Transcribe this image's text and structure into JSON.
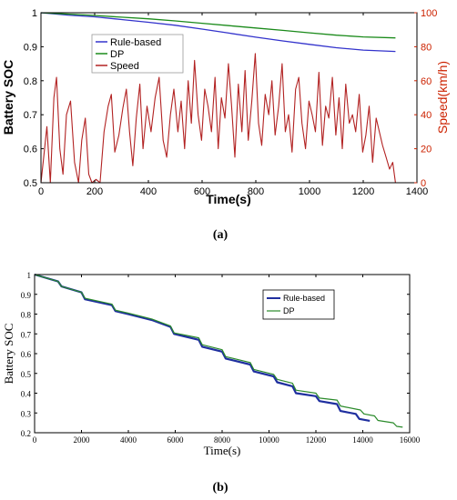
{
  "panel_a": {
    "caption": "(a)",
    "chart_data": {
      "type": "line",
      "xlabel": "Time(s)",
      "ylabel": "Battery SOC",
      "y2label": "Speed(km/h)",
      "xlim": [
        0,
        1400
      ],
      "ylim": [
        0.5,
        1.0
      ],
      "y2lim": [
        0,
        100
      ],
      "x_ticks": [
        "0",
        "200",
        "400",
        "600",
        "800",
        "1000",
        "1200",
        "1400"
      ],
      "y_ticks": [
        "0.5",
        "0.6",
        "0.7",
        "0.8",
        "0.9",
        "1"
      ],
      "y2_ticks": [
        "0",
        "20",
        "40",
        "60",
        "80",
        "100"
      ],
      "legend": {
        "placement": "top-left",
        "entries": [
          "Rule-based",
          "DP",
          "Speed"
        ]
      },
      "series": [
        {
          "name": "Rule-based",
          "color": "#3333cc",
          "axis": "left",
          "x": [
            0,
            100,
            200,
            300,
            400,
            500,
            600,
            700,
            800,
            900,
            1000,
            1100,
            1200,
            1320
          ],
          "values": [
            1.0,
            0.993,
            0.988,
            0.98,
            0.972,
            0.963,
            0.952,
            0.94,
            0.928,
            0.917,
            0.907,
            0.897,
            0.89,
            0.886
          ]
        },
        {
          "name": "DP",
          "color": "#1a8a1a",
          "axis": "left",
          "x": [
            0,
            100,
            200,
            300,
            400,
            500,
            600,
            700,
            800,
            900,
            1000,
            1100,
            1200,
            1320
          ],
          "values": [
            1.0,
            0.996,
            0.992,
            0.987,
            0.982,
            0.976,
            0.969,
            0.962,
            0.955,
            0.948,
            0.941,
            0.934,
            0.929,
            0.926
          ]
        },
        {
          "name": "Speed",
          "color": "#b22222",
          "axis": "right",
          "x": [
            0,
            10,
            22,
            35,
            48,
            58,
            70,
            82,
            95,
            110,
            125,
            140,
            152,
            165,
            178,
            190,
            205,
            220,
            235,
            250,
            262,
            275,
            290,
            305,
            318,
            330,
            342,
            355,
            368,
            380,
            395,
            410,
            425,
            440,
            455,
            468,
            482,
            495,
            510,
            522,
            535,
            548,
            560,
            572,
            585,
            598,
            610,
            622,
            635,
            648,
            660,
            672,
            685,
            698,
            710,
            722,
            735,
            748,
            760,
            772,
            785,
            798,
            810,
            822,
            835,
            848,
            860,
            872,
            885,
            898,
            910,
            922,
            935,
            948,
            960,
            972,
            985,
            998,
            1010,
            1022,
            1035,
            1048,
            1060,
            1072,
            1085,
            1098,
            1110,
            1122,
            1135,
            1148,
            1160,
            1172,
            1185,
            1198,
            1210,
            1222,
            1235,
            1248,
            1260,
            1272,
            1285,
            1298,
            1310,
            1320
          ],
          "values": [
            0,
            15,
            33,
            0,
            50,
            62,
            20,
            5,
            40,
            48,
            12,
            0,
            25,
            38,
            5,
            0,
            2,
            0,
            30,
            45,
            52,
            18,
            28,
            44,
            55,
            30,
            10,
            38,
            58,
            20,
            45,
            30,
            50,
            62,
            25,
            15,
            40,
            55,
            30,
            48,
            20,
            60,
            35,
            72,
            40,
            25,
            55,
            45,
            30,
            62,
            20,
            50,
            38,
            70,
            45,
            15,
            58,
            30,
            66,
            25,
            48,
            76,
            35,
            22,
            52,
            40,
            60,
            28,
            45,
            70,
            30,
            40,
            18,
            55,
            62,
            35,
            20,
            48,
            40,
            30,
            65,
            22,
            45,
            38,
            62,
            28,
            50,
            20,
            58,
            35,
            40,
            30,
            52,
            18,
            28,
            45,
            12,
            38,
            30,
            22,
            15,
            8,
            12,
            0
          ]
        }
      ]
    }
  },
  "panel_b": {
    "caption": "(b)",
    "chart_data": {
      "type": "line",
      "xlabel": "Time(s)",
      "ylabel": "Battery SOC",
      "xlim": [
        0,
        16000
      ],
      "ylim": [
        0.2,
        1.0
      ],
      "x_ticks": [
        "0",
        "2000",
        "4000",
        "6000",
        "8000",
        "10000",
        "12000",
        "14000",
        "16000"
      ],
      "y_ticks": [
        "0.2",
        "0.3",
        "0.4",
        "0.5",
        "0.6",
        "0.7",
        "0.8",
        "0.9",
        "1"
      ],
      "legend": {
        "placement": "top-right",
        "entries": [
          "Rule-based",
          "DP"
        ]
      },
      "series": [
        {
          "name": "Rule-based",
          "color": "#1f2f9f",
          "axis": "left",
          "x": [
            0,
            1000,
            1150,
            2000,
            2150,
            3300,
            3450,
            4000,
            5000,
            5800,
            5950,
            7000,
            7150,
            8000,
            8150,
            9200,
            9350,
            10200,
            10350,
            11000,
            11150,
            12000,
            12150,
            12900,
            13050,
            13700,
            13850,
            14300
          ],
          "values": [
            1.0,
            0.965,
            0.94,
            0.91,
            0.875,
            0.845,
            0.815,
            0.8,
            0.77,
            0.735,
            0.7,
            0.67,
            0.635,
            0.61,
            0.575,
            0.545,
            0.51,
            0.485,
            0.455,
            0.435,
            0.4,
            0.385,
            0.36,
            0.345,
            0.31,
            0.295,
            0.27,
            0.26
          ]
        },
        {
          "name": "DP",
          "color": "#2a8a2a",
          "axis": "left",
          "x": [
            0,
            1000,
            1150,
            2000,
            2150,
            3300,
            3450,
            4000,
            5000,
            5800,
            5950,
            7000,
            7150,
            8000,
            8150,
            9200,
            9350,
            10200,
            10350,
            11000,
            11150,
            12000,
            12150,
            12900,
            13050,
            13900,
            14050,
            14500,
            14650,
            15300,
            15450,
            15700
          ],
          "values": [
            1.0,
            0.965,
            0.94,
            0.91,
            0.88,
            0.85,
            0.82,
            0.805,
            0.775,
            0.74,
            0.705,
            0.68,
            0.645,
            0.62,
            0.585,
            0.555,
            0.52,
            0.495,
            0.47,
            0.45,
            0.415,
            0.4,
            0.375,
            0.365,
            0.335,
            0.315,
            0.295,
            0.285,
            0.262,
            0.25,
            0.232,
            0.228
          ]
        }
      ]
    }
  }
}
